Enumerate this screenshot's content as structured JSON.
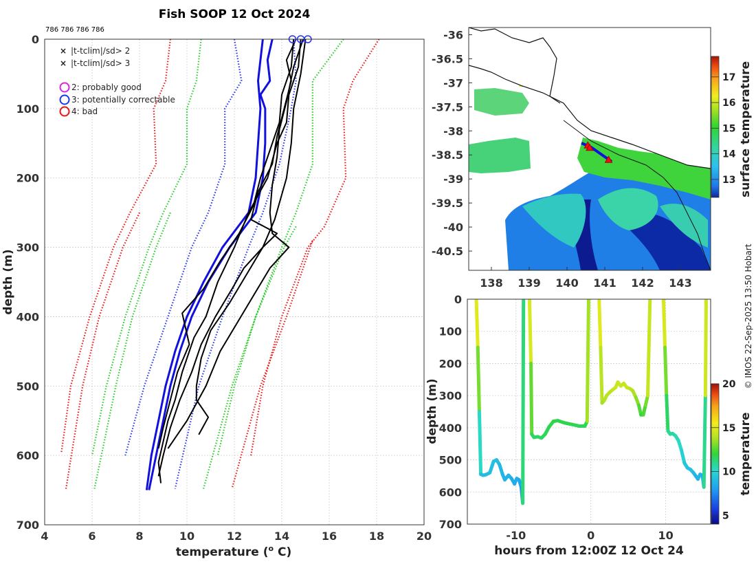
{
  "chart_data": [
    {
      "id": "profiles",
      "type": "line",
      "title": "Fish SOOP 12 Oct 2024",
      "header_ids": "786 786 786 786",
      "xlabel": "temperature (° C)",
      "xlabel_main": "temperature (",
      "xlabel_sup": "o",
      "xlabel_end": " C)",
      "ylabel": "depth (m)",
      "xlim": [
        4,
        20
      ],
      "ylim": [
        700,
        0
      ],
      "xticks": [
        4,
        6,
        8,
        10,
        12,
        14,
        16,
        18,
        20
      ],
      "yticks": [
        0,
        100,
        200,
        300,
        400,
        500,
        600,
        700
      ],
      "grid": true,
      "legend": [
        {
          "marker": "x",
          "color": "#22cc22",
          "label": "|t-tclim|/sd> 2"
        },
        {
          "marker": "x",
          "color": "#ee1111",
          "label": "|t-tclim|/sd> 3"
        },
        {
          "marker": "o",
          "color": "#dd22dd",
          "label": "2: probably good"
        },
        {
          "marker": "o",
          "color": "#2233ee",
          "label": "3: potentially correctable"
        },
        {
          "marker": "o",
          "color": "#ee1111",
          "label": "4: bad"
        }
      ],
      "series": [
        {
          "name": "clim -3sd (a)",
          "style": "dotted",
          "color": "#ee1111",
          "depth": [
            0,
            60,
            100,
            180,
            250,
            300,
            400,
            500,
            597
          ],
          "temp": [
            9.3,
            9.1,
            8.6,
            8.7,
            7.6,
            6.9,
            5.9,
            5.1,
            4.7
          ]
        },
        {
          "name": "clim -3sd (b)",
          "style": "dotted",
          "color": "#ee1111",
          "depth": [
            250,
            300,
            400,
            500,
            648
          ],
          "temp": [
            8.0,
            7.3,
            6.3,
            5.6,
            4.9
          ]
        },
        {
          "name": "clim -2sd (a)",
          "style": "dotted",
          "color": "#22cc22",
          "depth": [
            0,
            60,
            100,
            180,
            250,
            300,
            400,
            500,
            600
          ],
          "temp": [
            10.6,
            10.4,
            10.0,
            10.0,
            9.0,
            8.4,
            7.4,
            6.6,
            6.0
          ]
        },
        {
          "name": "clim -2sd (b)",
          "style": "dotted",
          "color": "#22cc22",
          "depth": [
            250,
            300,
            400,
            500,
            648
          ],
          "temp": [
            9.3,
            8.7,
            7.7,
            7.0,
            6.1
          ]
        },
        {
          "name": "clim mean (a)",
          "style": "dotted",
          "color": "#2233ee",
          "depth": [
            0,
            60,
            100,
            180,
            250,
            300,
            400,
            500,
            600
          ],
          "temp": [
            12.0,
            12.3,
            11.6,
            11.6,
            10.9,
            10.2,
            9.2,
            8.2,
            7.4
          ]
        },
        {
          "name": "clim mean (b)",
          "style": "dotted",
          "color": "#2233ee",
          "depth": [
            0,
            60,
            100,
            180,
            250,
            300,
            400,
            500,
            648
          ],
          "temp": [
            14.5,
            14.6,
            14.4,
            13.9,
            13.2,
            12.6,
            11.5,
            10.5,
            9.5
          ]
        },
        {
          "name": "clim +2sd (a)",
          "style": "dotted",
          "color": "#22cc22",
          "depth": [
            0,
            60,
            100,
            180,
            250,
            300,
            400,
            500,
            600
          ],
          "temp": [
            16.6,
            15.3,
            15.3,
            15.3,
            14.6,
            14.0,
            12.9,
            12.0,
            11.3
          ]
        },
        {
          "name": "clim +2sd (b)",
          "style": "dotted",
          "color": "#22cc22",
          "depth": [
            270,
            300,
            400,
            500,
            648
          ],
          "temp": [
            14.6,
            14.1,
            12.9,
            11.9,
            10.7
          ]
        },
        {
          "name": "clim +3sd (a)",
          "style": "dotted",
          "color": "#ee1111",
          "depth": [
            0,
            60,
            100,
            200,
            270,
            300,
            400,
            500,
            600
          ],
          "temp": [
            18.1,
            17.0,
            16.6,
            16.7,
            15.8,
            15.1,
            14.0,
            13.2,
            12.7
          ]
        },
        {
          "name": "clim +3sd (b)",
          "style": "dotted",
          "color": "#ee1111",
          "depth": [
            290,
            400,
            500,
            648
          ],
          "temp": [
            15.3,
            14.2,
            13.1,
            11.9
          ]
        },
        {
          "name": "profile QC3 (1)",
          "style": "solid-thick",
          "color": "#1111dd",
          "depth": [
            0,
            30,
            60,
            80,
            100,
            150,
            200,
            250,
            300,
            350,
            400,
            450,
            500,
            550,
            600,
            650
          ],
          "temp": [
            13.6,
            13.4,
            13.5,
            13.1,
            13.3,
            13.3,
            13.2,
            12.9,
            11.8,
            10.9,
            10.2,
            9.7,
            9.3,
            9.0,
            8.7,
            8.4
          ]
        },
        {
          "name": "profile QC3 (2)",
          "style": "solid-thick",
          "color": "#1111dd",
          "depth": [
            0,
            60,
            100,
            150,
            200,
            250,
            300,
            350,
            400,
            450,
            500,
            550,
            600,
            650
          ],
          "temp": [
            13.2,
            13.0,
            13.1,
            13.0,
            12.9,
            12.6,
            11.5,
            10.7,
            10.0,
            9.5,
            9.1,
            8.8,
            8.5,
            8.3
          ]
        },
        {
          "name": "profile 1",
          "style": "solid",
          "color": "#000000",
          "depth": [
            0,
            40,
            80,
            120,
            150,
            200,
            250,
            300,
            350,
            400,
            430,
            480,
            520,
            550,
            580,
            610,
            640
          ],
          "temp": [
            14.8,
            14.7,
            14.3,
            14.2,
            13.8,
            13.4,
            12.6,
            12.0,
            11.3,
            10.8,
            10.3,
            9.8,
            9.5,
            9.2,
            9.0,
            8.8,
            8.9
          ]
        },
        {
          "name": "profile 2",
          "style": "solid",
          "color": "#000000",
          "depth": [
            0,
            40,
            80,
            120,
            160,
            200,
            240,
            280,
            320,
            360,
            395,
            440,
            480,
            520,
            560,
            590
          ],
          "temp": [
            14.5,
            14.4,
            14.0,
            13.9,
            13.5,
            13.1,
            12.8,
            12.2,
            11.4,
            10.7,
            9.8,
            10.1,
            9.6,
            9.3,
            9.0,
            8.8
          ]
        },
        {
          "name": "profile 3",
          "style": "solid",
          "color": "#000000",
          "depth": [
            0,
            50,
            100,
            150,
            200,
            260,
            300,
            340,
            380,
            420,
            460,
            500,
            520,
            545,
            570
          ],
          "temp": [
            15.0,
            14.8,
            14.5,
            14.4,
            14.2,
            13.7,
            13.2,
            12.5,
            11.8,
            11.0,
            10.6,
            10.4,
            10.4,
            10.9,
            10.5
          ]
        },
        {
          "name": "profile 4",
          "style": "solid",
          "color": "#000000",
          "depth": [
            0,
            30,
            60,
            100,
            140,
            180,
            220,
            260,
            280,
            300,
            330,
            360,
            400,
            440,
            480,
            520,
            560,
            600,
            630
          ],
          "temp": [
            14.6,
            14.2,
            14.4,
            14.1,
            13.8,
            13.6,
            13.0,
            12.7,
            13.8,
            13.2,
            12.4,
            11.9,
            11.2,
            10.6,
            10.2,
            9.7,
            9.3,
            9.0,
            8.8
          ]
        },
        {
          "name": "profile 5",
          "style": "solid",
          "color": "#000000",
          "depth": [
            0,
            40,
            90,
            130,
            170,
            210,
            250,
            280,
            300,
            330,
            370,
            410,
            450,
            500,
            550,
            590
          ],
          "temp": [
            14.9,
            14.5,
            14.2,
            13.9,
            13.8,
            13.6,
            13.5,
            13.6,
            14.3,
            13.5,
            12.8,
            12.1,
            11.4,
            10.8,
            10.0,
            9.2
          ]
        }
      ],
      "markers_top": [
        {
          "temp": 14.45,
          "depth": 0
        },
        {
          "temp": 14.8,
          "depth": 0
        },
        {
          "temp": 15.1,
          "depth": 0
        }
      ],
      "annotations": []
    },
    {
      "id": "map",
      "type": "heatmap",
      "xlim": [
        137.4,
        143.8
      ],
      "ylim": [
        -40.9,
        -35.85
      ],
      "xticks": [
        138,
        139,
        140,
        141,
        142,
        143
      ],
      "yticks": [
        -36,
        -36.5,
        -37,
        -37.5,
        -38,
        -38.5,
        -39,
        -39.5,
        -40,
        -40.5
      ],
      "colorbar": {
        "label": "surface temperature",
        "ticks": [
          13,
          14,
          15,
          16,
          17
        ],
        "range": [
          12.3,
          17.8
        ]
      },
      "stations": [
        {
          "lon": 140.55,
          "lat": -38.3
        },
        {
          "lon": 140.6,
          "lat": -38.35
        },
        {
          "lon": 141.1,
          "lat": -38.6
        }
      ]
    },
    {
      "id": "section",
      "type": "line",
      "xlabel": "hours from 12:00Z 12 Oct 24",
      "ylabel": "depth (m)",
      "xlim": [
        -16.5,
        16
      ],
      "ylim": [
        700,
        0
      ],
      "xticks": [
        -10,
        0,
        10
      ],
      "yticks": [
        0,
        100,
        200,
        300,
        400,
        500,
        600,
        700
      ],
      "colorbar": {
        "label": "temperature",
        "ticks": [
          5,
          10,
          15,
          20
        ],
        "range": [
          4,
          20
        ]
      },
      "series": [
        {
          "name": "dive 1",
          "hours": [
            -15.3,
            -15.1,
            -14.9,
            -14.7,
            -14.4,
            -14.0,
            -13.5,
            -13.0,
            -12.6,
            -12.2,
            -11.8,
            -11.5,
            -11.0,
            -10.6,
            -10.2,
            -9.9,
            -9.6,
            -9.3,
            -9.1,
            -9.0
          ],
          "depth": [
            0,
            150,
            350,
            545,
            548,
            546,
            540,
            505,
            500,
            515,
            545,
            562,
            548,
            558,
            575,
            558,
            562,
            585,
            635,
            0
          ],
          "temp": [
            15.5,
            14.5,
            11.5,
            9.0,
            9.0,
            9.0,
            9.0,
            9.2,
            9.2,
            9.0,
            8.8,
            8.6,
            8.8,
            8.6,
            8.4,
            8.6,
            8.5,
            8.2,
            7.5,
            15.0
          ]
        },
        {
          "name": "dive 2",
          "hours": [
            -8.2,
            -8.0,
            -7.9,
            -7.6,
            -7.1,
            -6.6,
            -6.1,
            -5.6,
            -5.0,
            -4.4,
            -3.5,
            -2.5,
            -1.5,
            -0.8,
            -0.5,
            -0.3
          ],
          "depth": [
            0,
            200,
            420,
            430,
            428,
            432,
            420,
            398,
            380,
            378,
            385,
            390,
            395,
            395,
            380,
            0
          ],
          "temp": [
            15.5,
            14.0,
            11.5,
            11.5,
            11.5,
            11.5,
            11.6,
            11.7,
            11.8,
            11.8,
            11.8,
            11.8,
            11.6,
            11.6,
            11.8,
            15.5
          ]
        },
        {
          "name": "dive 3",
          "hours": [
            1.1,
            1.3,
            1.5,
            1.8,
            2.1,
            2.5,
            2.9,
            3.3,
            3.6,
            4.0,
            4.4,
            4.8,
            5.2,
            5.6,
            6.0,
            6.4,
            6.7,
            7.0,
            7.3,
            7.6,
            7.9
          ],
          "depth": [
            0,
            150,
            323,
            315,
            300,
            290,
            282,
            275,
            258,
            270,
            262,
            275,
            278,
            285,
            305,
            330,
            360,
            360,
            330,
            300,
            0
          ],
          "temp": [
            15.5,
            14.5,
            13.5,
            13.8,
            14.0,
            14.0,
            14.1,
            14.3,
            14.5,
            14.3,
            14.4,
            14.3,
            14.2,
            14.0,
            13.5,
            13.0,
            12.0,
            12.0,
            12.8,
            13.2,
            15.5
          ]
        },
        {
          "name": "dive 4",
          "hours": [
            9.7,
            9.9,
            10.1,
            10.3,
            10.6,
            10.9,
            11.3,
            11.7,
            12.1,
            12.5,
            12.9,
            13.3,
            13.7,
            14.0,
            14.3,
            14.6,
            14.9,
            15.1,
            15.3,
            15.4
          ],
          "depth": [
            0,
            150,
            300,
            410,
            420,
            418,
            425,
            440,
            470,
            510,
            525,
            530,
            540,
            550,
            560,
            545,
            548,
            585,
            300,
            0
          ],
          "temp": [
            15.5,
            14.0,
            12.0,
            11.0,
            10.8,
            10.8,
            10.6,
            10.4,
            10.0,
            9.5,
            9.3,
            9.2,
            9.0,
            8.8,
            8.6,
            8.8,
            8.8,
            8.4,
            13.5,
            15.5
          ]
        }
      ]
    }
  ],
  "credit": "© IMOS 22-Sep-2025 13:50 Hobart"
}
